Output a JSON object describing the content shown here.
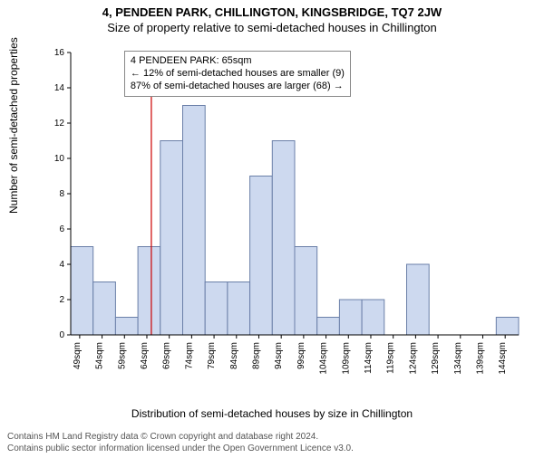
{
  "title_line1": "4, PENDEEN PARK, CHILLINGTON, KINGSBRIDGE, TQ7 2JW",
  "title_line2": "Size of property relative to semi-detached houses in Chillington",
  "ylabel": "Number of semi-detached properties",
  "xlabel": "Distribution of semi-detached houses by size in Chillington",
  "footer_line1": "Contains HM Land Registry data © Crown copyright and database right 2024.",
  "footer_line2": "Contains public sector information licensed under the Open Government Licence v3.0.",
  "chart": {
    "type": "histogram",
    "bar_color": "#cdd9ef",
    "bar_border": "#6a7fa8",
    "marker_line_color": "#cc0000",
    "axis_color": "#000000",
    "grid": false,
    "background_color": "#ffffff",
    "ylim": [
      0,
      16
    ],
    "ytick_step": 2,
    "x_start": 47,
    "x_end": 147,
    "bin_width": 5,
    "x_tick_start": 49,
    "x_tick_step": 5,
    "x_tick_suffix": "sqm",
    "marker_x": 65,
    "bars": [
      {
        "start": 47,
        "count": 5
      },
      {
        "start": 52,
        "count": 3
      },
      {
        "start": 57,
        "count": 1
      },
      {
        "start": 62,
        "count": 5
      },
      {
        "start": 67,
        "count": 11
      },
      {
        "start": 72,
        "count": 13
      },
      {
        "start": 77,
        "count": 3
      },
      {
        "start": 82,
        "count": 3
      },
      {
        "start": 87,
        "count": 9
      },
      {
        "start": 92,
        "count": 11
      },
      {
        "start": 97,
        "count": 5
      },
      {
        "start": 102,
        "count": 1
      },
      {
        "start": 107,
        "count": 2
      },
      {
        "start": 112,
        "count": 2
      },
      {
        "start": 117,
        "count": 0
      },
      {
        "start": 122,
        "count": 4
      },
      {
        "start": 127,
        "count": 0
      },
      {
        "start": 132,
        "count": 0
      },
      {
        "start": 137,
        "count": 0
      },
      {
        "start": 142,
        "count": 1
      }
    ]
  },
  "annotation": {
    "line1": "4 PENDEEN PARK: 65sqm",
    "line2": "← 12% of semi-detached houses are smaller (9)",
    "line3": "87% of semi-detached houses are larger (68) →"
  },
  "label_fontsize": 11,
  "tick_fontsize": 10
}
